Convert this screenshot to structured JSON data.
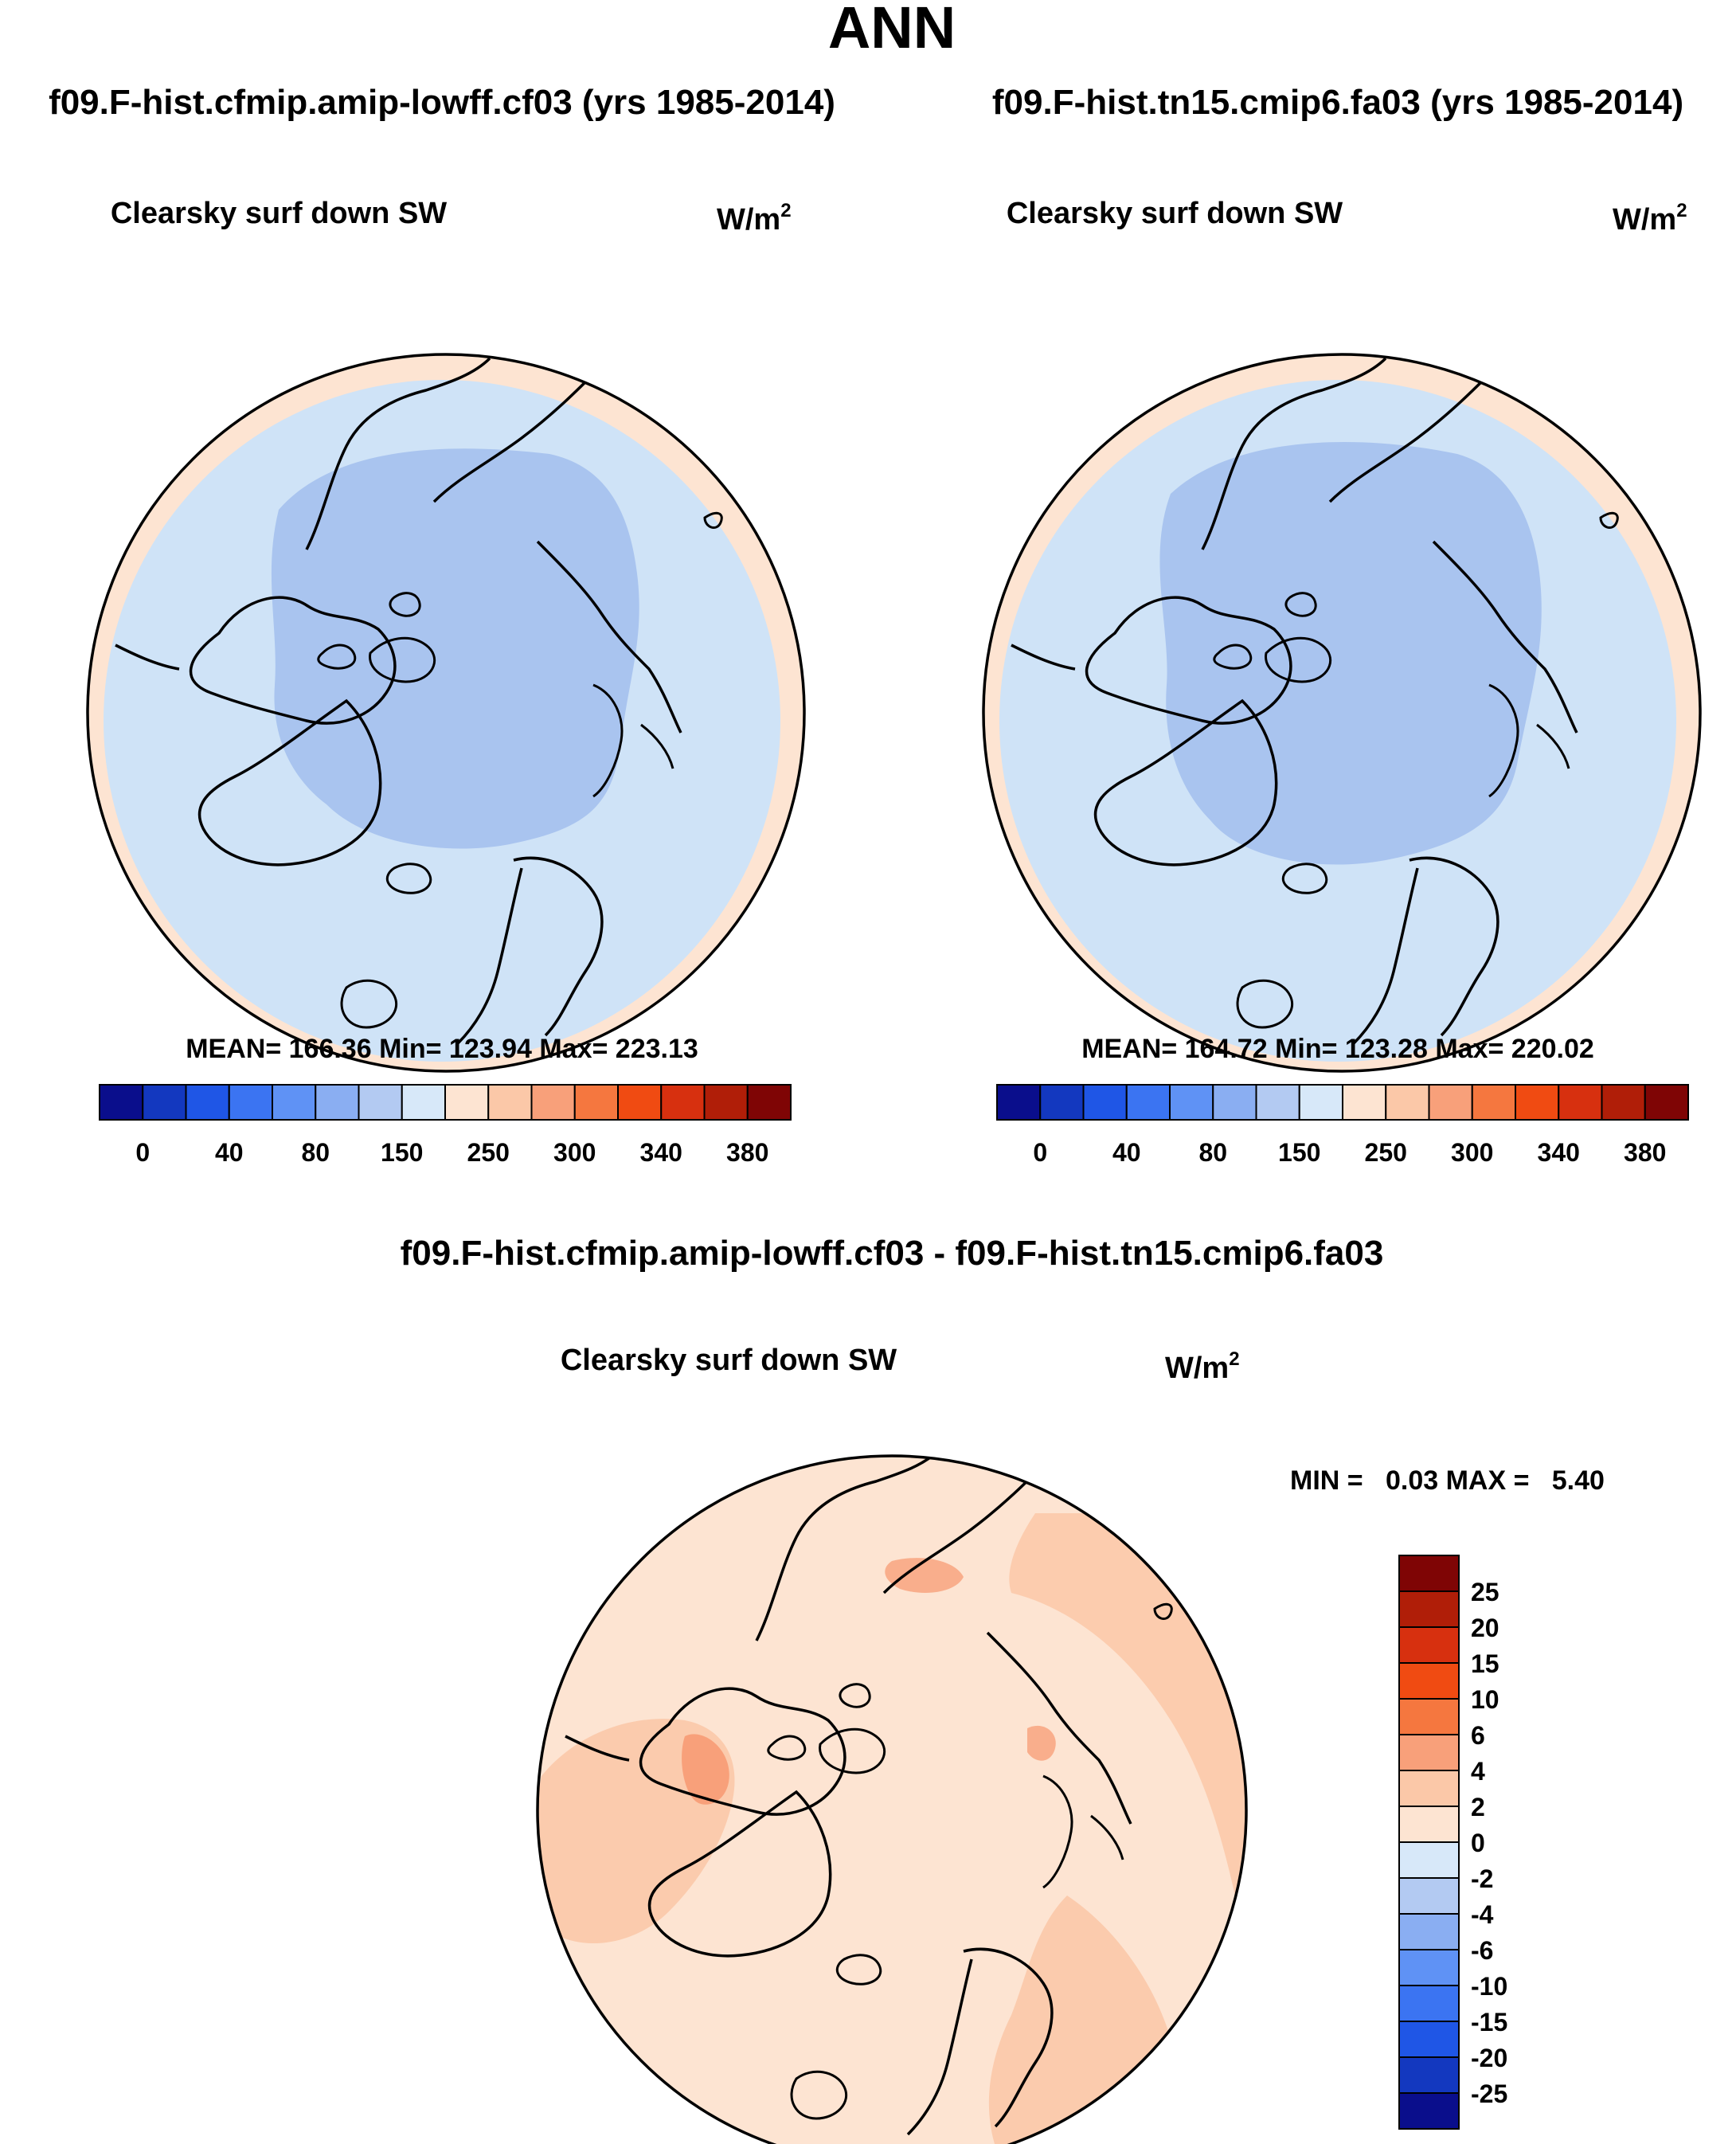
{
  "page_title": "ANN",
  "colors": {
    "ocean_low": "#cfe3f7",
    "ocean_polar": "#a9c4ef",
    "ring": "#fde4d2",
    "land_line": "#000000",
    "diff_base": "#fde4d2",
    "diff_mid": "#fbc8a8",
    "diff_high": "#f8a07a"
  },
  "chart_data": [
    {
      "type": "heatmap",
      "projection": "north-polar-stereographic",
      "case_title": "f09.F-hist.cfmip.amip-lowff.cf03 (yrs 1985-2014)",
      "variable": "Clearsky surf down SW",
      "units_base": "W/m",
      "units_sup": "2",
      "stats": {
        "mean": "166.36",
        "min": "123.94",
        "max": "223.13"
      },
      "stats_text": "MEAN= 166.36  Min= 123.94  Max= 223.13",
      "colorbar": {
        "orientation": "horizontal",
        "tick_labels": [
          "0",
          "40",
          "80",
          "150",
          "250",
          "300",
          "340",
          "380"
        ],
        "colors": [
          "#0a0e8c",
          "#1338bf",
          "#1f56e6",
          "#3b74f2",
          "#5f92f5",
          "#8aaef2",
          "#b3caf2",
          "#d7e8f9",
          "#fde4d2",
          "#fbc8a8",
          "#f8a07a",
          "#f5773f",
          "#f04b12",
          "#d7300f",
          "#b01e08",
          "#7f0505"
        ]
      }
    },
    {
      "type": "heatmap",
      "projection": "north-polar-stereographic",
      "case_title": "f09.F-hist.tn15.cmip6.fa03 (yrs 1985-2014)",
      "variable": "Clearsky surf down SW",
      "units_base": "W/m",
      "units_sup": "2",
      "stats": {
        "mean": "164.72",
        "min": "123.28",
        "max": "220.02"
      },
      "stats_text": "MEAN= 164.72  Min= 123.28  Max= 220.02",
      "colorbar": {
        "orientation": "horizontal",
        "tick_labels": [
          "0",
          "40",
          "80",
          "150",
          "250",
          "300",
          "340",
          "380"
        ],
        "colors": [
          "#0a0e8c",
          "#1338bf",
          "#1f56e6",
          "#3b74f2",
          "#5f92f5",
          "#8aaef2",
          "#b3caf2",
          "#d7e8f9",
          "#fde4d2",
          "#fbc8a8",
          "#f8a07a",
          "#f5773f",
          "#f04b12",
          "#d7300f",
          "#b01e08",
          "#7f0505"
        ]
      }
    },
    {
      "type": "heatmap",
      "projection": "north-polar-stereographic",
      "case_title": "f09.F-hist.cfmip.amip-lowff.cf03 - f09.F-hist.tn15.cmip6.fa03",
      "variable": "Clearsky surf down SW",
      "units_base": "W/m",
      "units_sup": "2",
      "stats": {
        "min": "0.03",
        "max": "5.40"
      },
      "stats_text": "MIN =   0.03 MAX =   5.40",
      "colorbar": {
        "orientation": "vertical",
        "tick_labels": [
          "25",
          "20",
          "15",
          "10",
          "6",
          "4",
          "2",
          "0",
          "-2",
          "-4",
          "-6",
          "-10",
          "-15",
          "-20",
          "-25"
        ],
        "colors": [
          "#7f0505",
          "#b01e08",
          "#d7300f",
          "#f04b12",
          "#f5773f",
          "#f8a07a",
          "#fbc8a8",
          "#fde4d2",
          "#d7e8f9",
          "#b3caf2",
          "#8aaef2",
          "#5f92f5",
          "#3b74f2",
          "#1f56e6",
          "#1338bf",
          "#0a0e8c"
        ]
      }
    }
  ]
}
